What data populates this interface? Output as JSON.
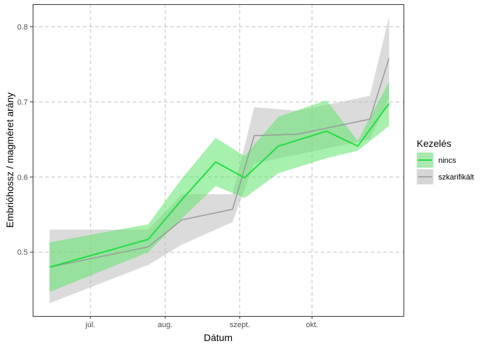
{
  "chart_data": {
    "type": "line",
    "title": "",
    "xlabel": "Dátum",
    "ylabel": "Embrióhossz / magméret arány",
    "x_tick_labels": [
      "júl.",
      "aug.",
      "szept.",
      "okt."
    ],
    "x_tick_dates": [
      "2020-07-01",
      "2020-08-01",
      "2020-09-01",
      "2020-10-01"
    ],
    "xlim": [
      "2020-06-07",
      "2020-11-08"
    ],
    "ylim": [
      0.415,
      0.83
    ],
    "y_ticks": [
      0.5,
      0.6,
      0.7,
      0.8
    ],
    "y_tick_labels": [
      "0.5",
      "0.6",
      "0.7",
      "0.8"
    ],
    "grid": true,
    "legend": {
      "title": "Kezelés",
      "position": "right"
    },
    "series": [
      {
        "name": "nincs",
        "color": "#22dd44",
        "ribbon_color": "#5ee36a",
        "x": [
          "2020-06-14",
          "2020-07-25",
          "2020-08-08",
          "2020-08-22",
          "2020-09-03",
          "2020-09-17",
          "2020-10-07",
          "2020-10-20",
          "2020-11-02"
        ],
        "y": [
          0.48,
          0.517,
          0.57,
          0.62,
          0.599,
          0.641,
          0.661,
          0.641,
          0.698
        ],
        "lower": [
          0.447,
          0.5,
          0.545,
          0.588,
          0.572,
          0.605,
          0.625,
          0.635,
          0.668
        ],
        "upper": [
          0.513,
          0.537,
          0.598,
          0.652,
          0.628,
          0.68,
          0.702,
          0.648,
          0.727
        ]
      },
      {
        "name": "szkarifikált",
        "color": "#999999",
        "ribbon_color": "#bdbdbd",
        "x": [
          "2020-06-14",
          "2020-07-25",
          "2020-08-08",
          "2020-08-29",
          "2020-09-07",
          "2020-09-25",
          "2020-10-25",
          "2020-11-02"
        ],
        "y": [
          0.48,
          0.507,
          0.543,
          0.557,
          0.655,
          0.657,
          0.677,
          0.758
        ],
        "lower": [
          0.432,
          0.483,
          0.51,
          0.54,
          0.618,
          0.63,
          0.65,
          0.705
        ],
        "upper": [
          0.53,
          0.53,
          0.577,
          0.577,
          0.693,
          0.688,
          0.708,
          0.813
        ]
      }
    ]
  }
}
